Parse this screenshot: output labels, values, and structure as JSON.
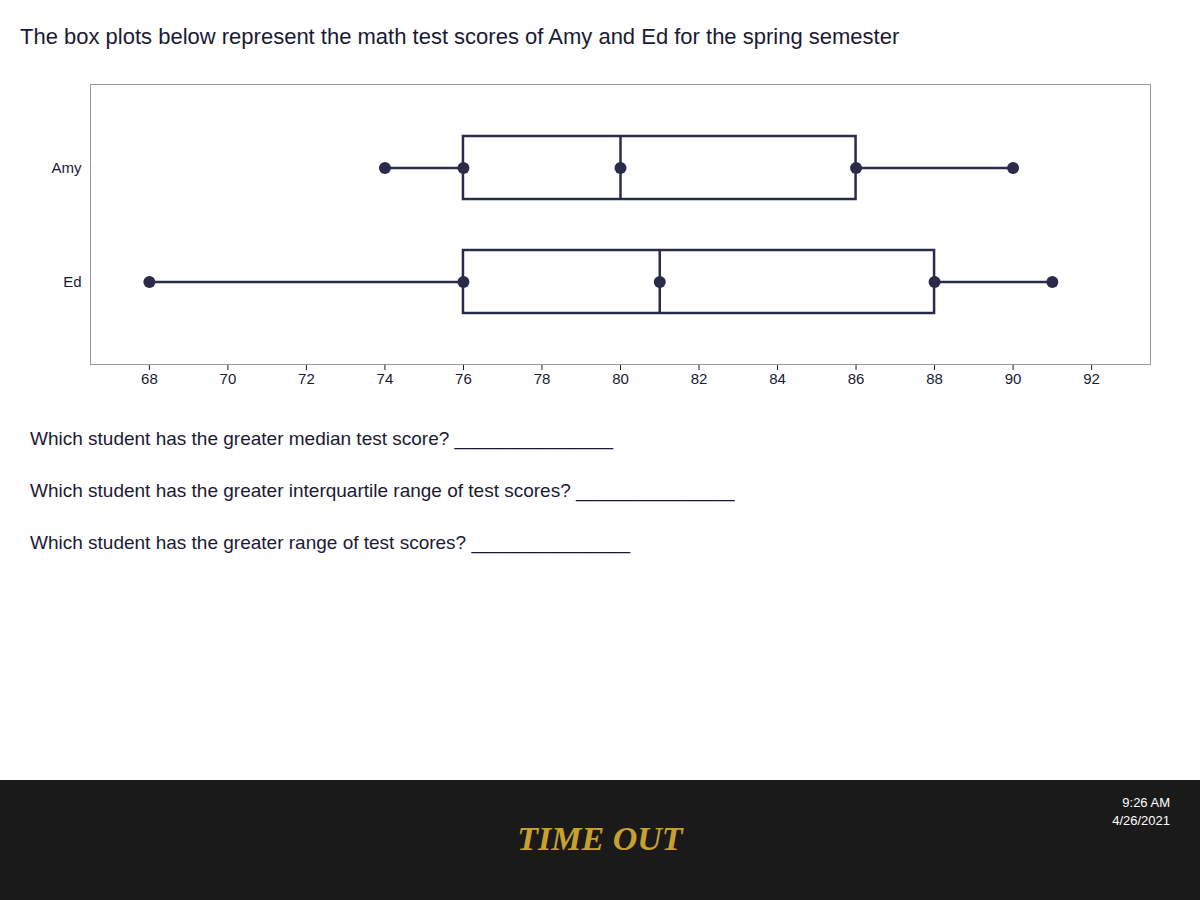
{
  "chart_data": {
    "type": "box",
    "title": "The box plots below represent the math test scores of Amy and Ed for the spring semester",
    "categories": [
      "Amy",
      "Ed"
    ],
    "values": [
      {
        "min": 74,
        "q1": 76,
        "median": 80,
        "q3": 86,
        "max": 90
      },
      {
        "min": 68,
        "q1": 76,
        "median": 81,
        "q3": 88,
        "max": 91
      }
    ],
    "orientation": "horizontal",
    "color": "#2a2a4a",
    "xlim": [
      66.5,
      93.5
    ],
    "xticks": [
      68,
      70,
      72,
      74,
      76,
      78,
      80,
      82,
      84,
      86,
      88,
      90,
      92
    ],
    "grid": false,
    "annotations": [
      "Which student has the greater median test score? _______________",
      "Which student has the greater interquartile range of test scores? _______________",
      "Which student has the greater range of test scores? _______________",
      "TIME OUT",
      "9:26 AM",
      "4/26/2021"
    ]
  }
}
